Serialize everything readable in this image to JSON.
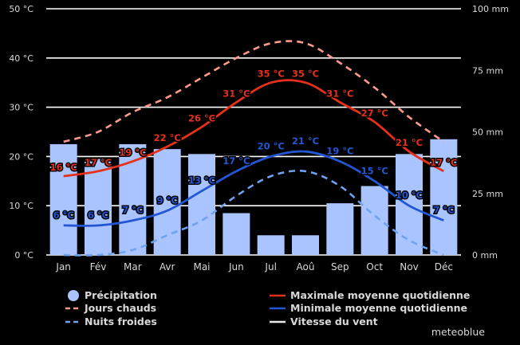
{
  "chart_data": {
    "type": "bar+line",
    "categories": [
      "Jan",
      "Fév",
      "Mar",
      "Avr",
      "Mai",
      "Jun",
      "Jul",
      "Aoû",
      "Sep",
      "Oct",
      "Nov",
      "Déc"
    ],
    "y_left": {
      "min": 0,
      "max": 50,
      "ticks": [
        "0 °C",
        "10 °C",
        "20 °C",
        "30 °C",
        "40 °C",
        "50 °C"
      ]
    },
    "y_right": {
      "min": 0,
      "max": 100,
      "ticks": [
        "0 mm",
        "25 mm",
        "50 mm",
        "75 mm",
        "100 mm"
      ]
    },
    "precipitation": {
      "name": "Précipitation",
      "axis": "right",
      "color": "#aac4ff",
      "values": [
        45,
        39,
        45,
        43,
        41,
        17,
        8,
        8,
        21,
        28,
        41,
        47
      ]
    },
    "series": [
      {
        "name": "Maximale moyenne quotidienne",
        "color": "#e5301c",
        "style": "solid",
        "values": [
          16,
          17,
          19,
          22,
          26,
          31,
          35,
          35,
          31,
          27,
          21,
          17
        ],
        "labels": [
          "16 °C",
          "17 °C",
          "19 °C",
          "22 °C",
          "26 °C",
          "31 °C",
          "35 °C",
          "35 °C",
          "31 °C",
          "27 °C",
          "21 °C",
          "17 °C"
        ]
      },
      {
        "name": "Minimale moyenne quotidienne",
        "color": "#2356d2",
        "style": "solid",
        "values": [
          6,
          6,
          7,
          9,
          13,
          17,
          20,
          21,
          19,
          15,
          10,
          7
        ],
        "labels": [
          "6 °C",
          "6 °C",
          "7 °C",
          "9 °C",
          "13 °C",
          "17 °C",
          "20 °C",
          "21 °C",
          "19 °C",
          "15 °C",
          "10 °C",
          "7 °C"
        ]
      },
      {
        "name": "Jours chauds",
        "color": "#ff9a8a",
        "style": "dashed",
        "values": [
          23,
          25,
          29,
          32,
          36,
          40,
          43,
          43,
          39,
          34,
          28,
          23
        ]
      },
      {
        "name": "Nuits froides",
        "color": "#6fa2f0",
        "style": "dashed",
        "values": [
          0,
          0,
          1,
          4,
          7,
          12,
          16,
          17,
          14,
          8,
          3,
          0
        ]
      }
    ],
    "legend": [
      {
        "label": "Précipitation",
        "symbol": "circle",
        "color": "#aac4ff"
      },
      {
        "label": "Jours chauds",
        "symbol": "dash",
        "color": "#ff9a8a"
      },
      {
        "label": "Nuits froides",
        "symbol": "dash",
        "color": "#6fa2f0"
      },
      {
        "label": "Maximale moyenne quotidienne",
        "symbol": "line",
        "color": "#e5301c"
      },
      {
        "label": "Minimale moyenne quotidienne",
        "symbol": "line",
        "color": "#2356d2"
      },
      {
        "label": "Vitesse du vent",
        "symbol": "line",
        "color": "#e8e8e8"
      }
    ],
    "legend_position": "bottom",
    "grid": true
  },
  "brand": "meteoblue"
}
